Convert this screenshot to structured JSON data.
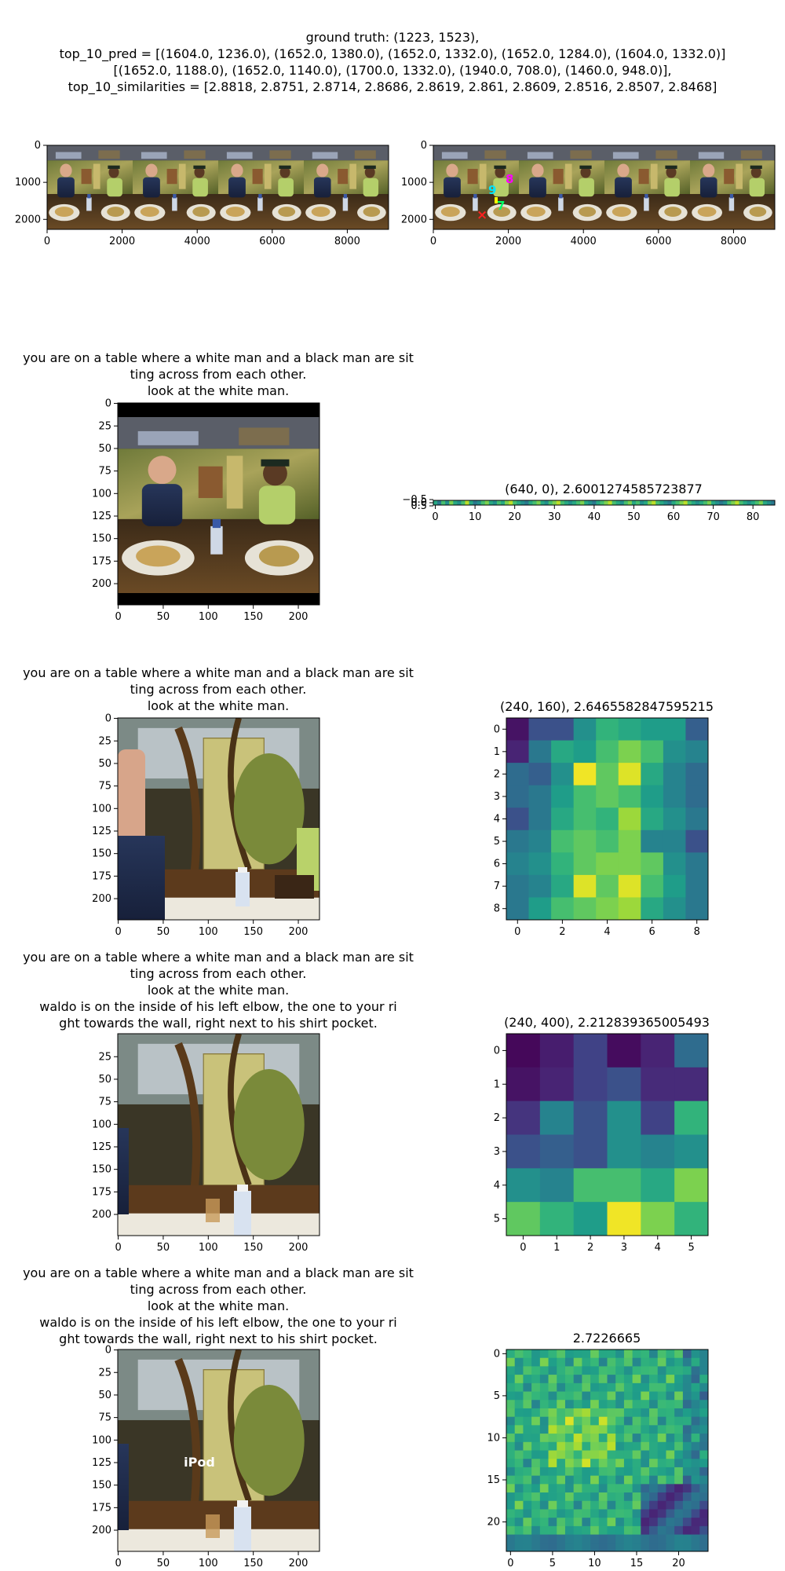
{
  "figure": {
    "suptitle_lines": [
      "ground truth: (1223, 1523),",
      "top_10_pred = [(1604.0, 1236.0), (1652.0, 1380.0), (1652.0, 1332.0), (1652.0, 1284.0), (1604.0, 1332.0)]",
      "[(1652.0, 1188.0), (1652.0, 1140.0), (1700.0, 1332.0), (1940.0, 708.0), (1460.0, 948.0)],",
      "top_10_similarities = [2.8818, 2.8751, 2.8714, 2.8686, 2.8619, 2.861, 2.8609, 2.8516, 2.8507, 2.8468]"
    ]
  },
  "prompts": {
    "line1": "you are on a table where a white man and a black man are sit",
    "line2": "ting across from each other.",
    "line3": "look at the white man.",
    "line4": "waldo is on the inside of his left elbow, the one to your ri",
    "line5": "ght towards the wall, right next to his shirt pocket."
  },
  "overlay_text": "iPod",
  "colors": {
    "ground_truth_marker": "#ff2020",
    "pred_labels": [
      "#00e5ff",
      "#00e5ff",
      "#00e5ff",
      "#ffff00",
      "#00ff66"
    ],
    "pred_magenta": "#ff00ff"
  },
  "pred_markers": [
    "9",
    "7",
    "8"
  ],
  "chart_data": [
    {
      "type": "heatmap",
      "panel": "panorama",
      "xticks": [
        "0",
        "2000",
        "4000",
        "6000",
        "8000"
      ],
      "yticks": [
        "0",
        "1000",
        "2000"
      ],
      "xlim": [
        0,
        9100
      ],
      "ylim": [
        2270,
        0
      ]
    },
    {
      "type": "heatmap",
      "panel": "panorama-with-predictions",
      "xticks": [
        "0",
        "2000",
        "4000",
        "6000",
        "8000"
      ],
      "yticks": [
        "0",
        "1000",
        "2000"
      ],
      "xlim": [
        0,
        9100
      ],
      "ylim": [
        2270,
        0
      ],
      "ground_truth": [
        1223,
        1523
      ],
      "predictions": [
        [
          1604,
          1236
        ],
        [
          1652,
          1380
        ],
        [
          1652,
          1332
        ],
        [
          1652,
          1284
        ],
        [
          1604,
          1332
        ],
        [
          1652,
          1188
        ],
        [
          1652,
          1140
        ],
        [
          1700,
          1332
        ],
        [
          1940,
          708
        ],
        [
          1460,
          948
        ]
      ],
      "similarities": [
        2.8818,
        2.8751,
        2.8714,
        2.8686,
        2.8619,
        2.861,
        2.8609,
        2.8516,
        2.8507,
        2.8468
      ]
    },
    {
      "type": "heatmap",
      "panel": "crop-1",
      "xticks": [
        "0",
        "50",
        "100",
        "150",
        "200"
      ],
      "yticks": [
        "0",
        "25",
        "50",
        "75",
        "100",
        "125",
        "150",
        "175",
        "200"
      ]
    },
    {
      "type": "heatmap",
      "panel": "strip",
      "title": "(640, 0), 2.6001274585723877",
      "xticks": [
        "0",
        "10",
        "20",
        "30",
        "40",
        "50",
        "60",
        "70",
        "80"
      ],
      "yticks": [
        "−0.5",
        "0.0",
        "0.5"
      ],
      "columns": 86,
      "rows": 1,
      "values": [
        0.6,
        0.4,
        0.7,
        0.5,
        0.8,
        0.6,
        0.5,
        0.7,
        0.9,
        0.6,
        0.4,
        0.5,
        0.7,
        0.8,
        0.6,
        0.5,
        0.7,
        0.6,
        0.8,
        0.9,
        0.7,
        0.6,
        0.5,
        0.4,
        0.6,
        0.7,
        0.8,
        0.6,
        0.5,
        0.7,
        0.8,
        0.9,
        0.7,
        0.6,
        0.5,
        0.6,
        0.7,
        0.8,
        0.6,
        0.5,
        0.4,
        0.6,
        0.7,
        0.8,
        0.9,
        0.7,
        0.6,
        0.5,
        0.7,
        0.8,
        0.6,
        0.7,
        0.5,
        0.6,
        0.8,
        0.9,
        0.7,
        0.6,
        0.5,
        0.4,
        0.6,
        0.7,
        0.8,
        0.9,
        0.7,
        0.6,
        0.5,
        0.6,
        0.7,
        0.8,
        0.6,
        0.5,
        0.4,
        0.5,
        0.7,
        0.8,
        0.9,
        0.7,
        0.6,
        0.5,
        0.6,
        0.7,
        0.8,
        0.6,
        0.5,
        0.4
      ]
    },
    {
      "type": "heatmap",
      "panel": "crop-2",
      "xticks": [
        "0",
        "50",
        "100",
        "150",
        "200"
      ],
      "yticks": [
        "0",
        "25",
        "50",
        "75",
        "100",
        "125",
        "150",
        "175",
        "200"
      ]
    },
    {
      "type": "heatmap",
      "panel": "grid-9",
      "title": "(240, 160), 2.6465582847595215",
      "xticks": [
        "0",
        "2",
        "4",
        "6",
        "8"
      ],
      "yticks": [
        "0",
        "1",
        "2",
        "3",
        "4",
        "5",
        "6",
        "7",
        "8"
      ],
      "rows": 9,
      "columns": 9,
      "values": [
        [
          0.05,
          0.25,
          0.25,
          0.5,
          0.65,
          0.6,
          0.55,
          0.55,
          0.3
        ],
        [
          0.1,
          0.4,
          0.6,
          0.55,
          0.7,
          0.8,
          0.7,
          0.5,
          0.45
        ],
        [
          0.35,
          0.3,
          0.5,
          0.98,
          0.75,
          0.95,
          0.6,
          0.45,
          0.35
        ],
        [
          0.35,
          0.4,
          0.55,
          0.7,
          0.75,
          0.7,
          0.55,
          0.45,
          0.35
        ],
        [
          0.25,
          0.4,
          0.6,
          0.7,
          0.65,
          0.85,
          0.6,
          0.5,
          0.4
        ],
        [
          0.4,
          0.45,
          0.7,
          0.75,
          0.7,
          0.8,
          0.45,
          0.45,
          0.25
        ],
        [
          0.45,
          0.5,
          0.65,
          0.75,
          0.8,
          0.8,
          0.75,
          0.5,
          0.4
        ],
        [
          0.4,
          0.45,
          0.6,
          0.95,
          0.75,
          0.95,
          0.7,
          0.55,
          0.4
        ],
        [
          0.4,
          0.55,
          0.7,
          0.75,
          0.8,
          0.85,
          0.6,
          0.5,
          0.4
        ]
      ]
    },
    {
      "type": "heatmap",
      "panel": "crop-3",
      "xticks": [
        "0",
        "50",
        "100",
        "150",
        "200"
      ],
      "yticks": [
        "25",
        "50",
        "75",
        "100",
        "125",
        "150",
        "175",
        "200"
      ]
    },
    {
      "type": "heatmap",
      "panel": "grid-6",
      "title": "(240, 400), 2.212839365005493",
      "xticks": [
        "0",
        "1",
        "2",
        "3",
        "4",
        "5"
      ],
      "yticks": [
        "0",
        "1",
        "2",
        "3",
        "4",
        "5"
      ],
      "rows": 6,
      "columns": 6,
      "values": [
        [
          0.02,
          0.08,
          0.2,
          0.03,
          0.1,
          0.35
        ],
        [
          0.05,
          0.1,
          0.2,
          0.25,
          0.12,
          0.12
        ],
        [
          0.15,
          0.45,
          0.25,
          0.5,
          0.2,
          0.65
        ],
        [
          0.25,
          0.3,
          0.25,
          0.5,
          0.45,
          0.5
        ],
        [
          0.5,
          0.45,
          0.7,
          0.7,
          0.6,
          0.8
        ],
        [
          0.75,
          0.65,
          0.55,
          0.98,
          0.8,
          0.65
        ]
      ]
    },
    {
      "type": "heatmap",
      "panel": "crop-4",
      "xticks": [
        "0",
        "50",
        "100",
        "150",
        "200"
      ],
      "yticks": [
        "0",
        "25",
        "50",
        "75",
        "100",
        "125",
        "150",
        "175",
        "200"
      ]
    },
    {
      "type": "heatmap",
      "panel": "grid-24",
      "title": "2.7226665",
      "xticks": [
        "0",
        "5",
        "10",
        "15",
        "20"
      ],
      "yticks": [
        "0",
        "5",
        "10",
        "15",
        "20"
      ],
      "rows": 24,
      "columns": 24
    }
  ]
}
